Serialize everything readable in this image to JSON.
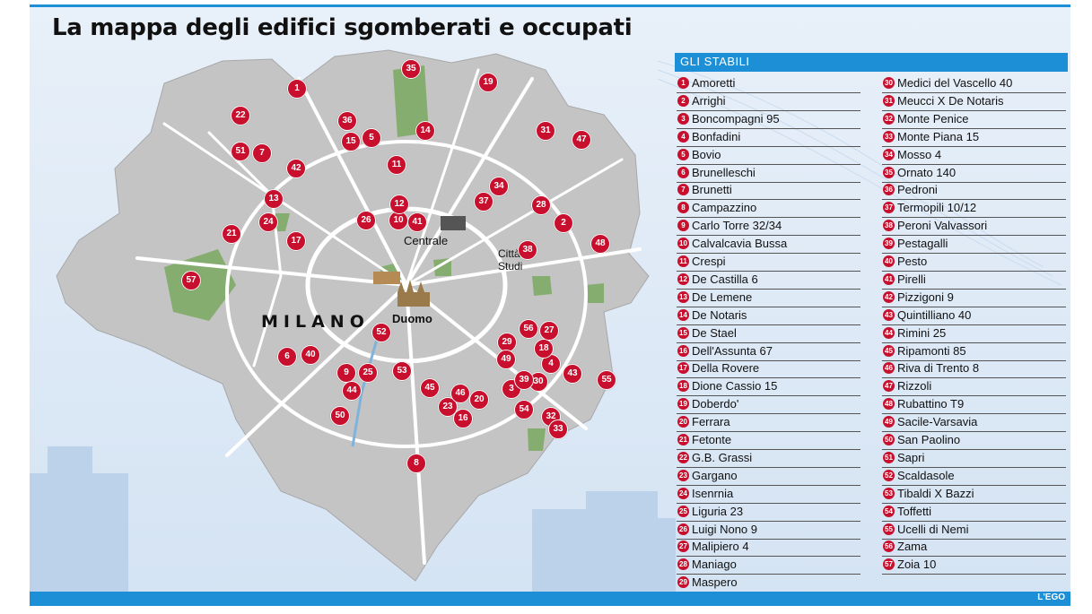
{
  "title": "La mappa degli edifici sgomberati e occupati",
  "legend_title": "GLI STABILI",
  "credit": "L'EGO",
  "map_labels": {
    "city": "MILANO",
    "duomo": "Duomo",
    "centrale": "Centrale",
    "citta_studi": "Città Studi"
  },
  "colors": {
    "accent": "#1c8fd6",
    "pin": "#c8102e",
    "land": "#c6c6c6",
    "park": "#7fa86a",
    "road": "#ffffff"
  },
  "stabili": [
    {
      "n": "1",
      "name": "Amoretti"
    },
    {
      "n": "2",
      "name": "Arrighi"
    },
    {
      "n": "3",
      "name": "Boncompagni 95"
    },
    {
      "n": "4",
      "name": "Bonfadini"
    },
    {
      "n": "5",
      "name": "Bovio"
    },
    {
      "n": "6",
      "name": "Brunelleschi"
    },
    {
      "n": "7",
      "name": "Brunetti"
    },
    {
      "n": "8",
      "name": "Campazzino"
    },
    {
      "n": "9",
      "name": "Carlo Torre 32/34"
    },
    {
      "n": "10",
      "name": "Calvalcavia Bussa"
    },
    {
      "n": "11",
      "name": "Crespi"
    },
    {
      "n": "12",
      "name": "De Castilla 6"
    },
    {
      "n": "13",
      "name": "De Lemene"
    },
    {
      "n": "14",
      "name": "De Notaris"
    },
    {
      "n": "15",
      "name": "De Stael"
    },
    {
      "n": "16",
      "name": "Dell'Assunta 67"
    },
    {
      "n": "17",
      "name": "Della Rovere"
    },
    {
      "n": "18",
      "name": "Dione Cassio 15"
    },
    {
      "n": "19",
      "name": "Doberdo'"
    },
    {
      "n": "20",
      "name": "Ferrara"
    },
    {
      "n": "21",
      "name": "Fetonte"
    },
    {
      "n": "22",
      "name": "G.B. Grassi"
    },
    {
      "n": "23",
      "name": "Gargano"
    },
    {
      "n": "24",
      "name": "Isenrnia"
    },
    {
      "n": "25",
      "name": "Liguria 23"
    },
    {
      "n": "26",
      "name": "Luigi Nono 9"
    },
    {
      "n": "27",
      "name": "Malipiero 4"
    },
    {
      "n": "28",
      "name": "Maniago"
    },
    {
      "n": "29",
      "name": "Maspero"
    },
    {
      "n": "30",
      "name": "Medici del Vascello 40"
    },
    {
      "n": "31",
      "name": "Meucci X De Notaris"
    },
    {
      "n": "32",
      "name": "Monte Penice"
    },
    {
      "n": "33",
      "name": "Monte Piana 15"
    },
    {
      "n": "34",
      "name": "Mosso 4"
    },
    {
      "n": "35",
      "name": "Ornato 140"
    },
    {
      "n": "36",
      "name": "Pedroni"
    },
    {
      "n": "37",
      "name": "Termopili 10/12"
    },
    {
      "n": "38",
      "name": "Peroni Valvassori"
    },
    {
      "n": "39",
      "name": "Pestagalli"
    },
    {
      "n": "40",
      "name": "Pesto"
    },
    {
      "n": "41",
      "name": "Pirelli"
    },
    {
      "n": "42",
      "name": "Pizzigoni 9"
    },
    {
      "n": "43",
      "name": "Quintilliano 40"
    },
    {
      "n": "44",
      "name": "Rimini 25"
    },
    {
      "n": "45",
      "name": "Ripamonti 85"
    },
    {
      "n": "46",
      "name": "Riva di Trento 8"
    },
    {
      "n": "47",
      "name": "Rizzoli"
    },
    {
      "n": "48",
      "name": "Rubattino T9"
    },
    {
      "n": "49",
      "name": "Sacile-Varsavia"
    },
    {
      "n": "50",
      "name": "San Paolino"
    },
    {
      "n": "51",
      "name": "Sapri"
    },
    {
      "n": "52",
      "name": "Scaldasole"
    },
    {
      "n": "53",
      "name": "Tibaldi X Bazzi"
    },
    {
      "n": "54",
      "name": "Toffetti"
    },
    {
      "n": "55",
      "name": "Ucelli di Nemi"
    },
    {
      "n": "56",
      "name": "Zama"
    },
    {
      "n": "57",
      "name": "Zoia 10"
    }
  ],
  "pins": [
    "1",
    "2",
    "3",
    "4",
    "5",
    "6",
    "7",
    "8",
    "9",
    "10",
    "11",
    "12",
    "13",
    "14",
    "15",
    "16",
    "17",
    "18",
    "19",
    "20",
    "21",
    "22",
    "23",
    "24",
    "25",
    "26",
    "27",
    "28",
    "29",
    "30",
    "31",
    "32",
    "33",
    "34",
    "35",
    "36",
    "37",
    "38",
    "39",
    "40",
    "41",
    "42",
    "43",
    "44",
    "45",
    "46",
    "47",
    "48",
    "49",
    "50",
    "51",
    "52",
    "53",
    "54",
    "55",
    "56",
    "57"
  ]
}
